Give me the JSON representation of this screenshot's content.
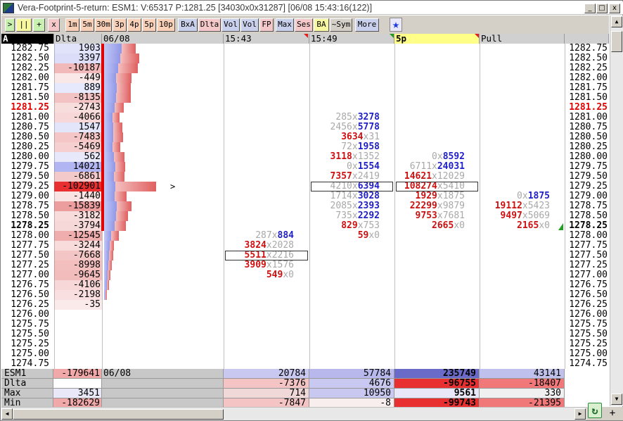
{
  "window": {
    "title": "Vera-Footprint-5-return: ESM1: V:65317 P:1281.25 [34030x0x31287] [06/08 15:43:16(122)]",
    "min_label": "_",
    "max_label": "□",
    "close_label": "x"
  },
  "toolbar": {
    "buttons": [
      ">",
      "||",
      "+",
      "x",
      "1m",
      "5m",
      "30m",
      "3p",
      "4p",
      "5p",
      "10p",
      "BxA",
      "Dlta",
      "Vol",
      "Vol",
      "FP",
      "Max",
      "Ses",
      "BA",
      "~Sym",
      "More"
    ],
    "star": "★"
  },
  "header": {
    "corner": "A",
    "dlta": "Dlta",
    "date": "06/08",
    "cols": [
      "15:43",
      "15:49",
      "5p",
      "Pull"
    ]
  },
  "prices": [
    "1282.75",
    "1282.50",
    "1282.25",
    "1282.00",
    "1281.75",
    "1281.50",
    "1281.25",
    "1281.00",
    "1280.75",
    "1280.50",
    "1280.25",
    "1280.00",
    "1279.75",
    "1279.50",
    "1279.25",
    "1279.00",
    "1278.75",
    "1278.50",
    "1278.25",
    "1278.00",
    "1277.75",
    "1277.50",
    "1277.25",
    "1277.00",
    "1276.75",
    "1276.50",
    "1276.25",
    "1276.00",
    "1275.75",
    "1275.50",
    "1275.25",
    "1275.00",
    "1274.75"
  ],
  "last_price": "1281.25",
  "current_price": "1278.25",
  "deltas": [
    "1903",
    "3397",
    "-10187",
    "-449",
    "889",
    "-8135",
    "-2743",
    "-4066",
    "1547",
    "-7483",
    "-5469",
    "562",
    "14021",
    "-6861",
    "-102901",
    "-1440",
    "-15839",
    "-3182",
    "-3794",
    "-12545",
    "-3244",
    "-7668",
    "-8998",
    "-9645",
    "-4106",
    "-2198",
    "-35",
    "",
    "",
    "",
    "",
    "",
    ""
  ],
  "vol_profile": [
    {
      "b": 0.25,
      "r": 0.2
    },
    {
      "b": 0.23,
      "r": 0.27
    },
    {
      "b": 0.2,
      "r": 0.28
    },
    {
      "b": 0.17,
      "r": 0.22
    },
    {
      "b": 0.18,
      "r": 0.2
    },
    {
      "b": 0.17,
      "r": 0.21
    },
    {
      "b": 0.15,
      "r": 0.13
    },
    {
      "b": 0.12,
      "r": 0.1
    },
    {
      "b": 0.13,
      "r": 0.13
    },
    {
      "b": 0.13,
      "r": 0.14
    },
    {
      "b": 0.12,
      "r": 0.11
    },
    {
      "b": 0.14,
      "r": 0.15
    },
    {
      "b": 0.16,
      "r": 0.14
    },
    {
      "b": 0.14,
      "r": 0.15
    },
    {
      "b": 0.16,
      "r": 0.58
    },
    {
      "b": 0.15,
      "r": 0.17
    },
    {
      "b": 0.18,
      "r": 0.21
    },
    {
      "b": 0.17,
      "r": 0.17
    },
    {
      "b": 0.15,
      "r": 0.16
    },
    {
      "b": 0.1,
      "r": 0.11
    },
    {
      "b": 0.08,
      "r": 0.06
    },
    {
      "b": 0.07,
      "r": 0.06
    },
    {
      "b": 0.06,
      "r": 0.05
    },
    {
      "b": 0.05,
      "r": 0.04
    },
    {
      "b": 0.04,
      "r": 0.03
    },
    {
      "b": 0.02,
      "r": 0.02
    },
    {
      "b": 0.0,
      "r": 0.0
    },
    {
      "b": 0,
      "r": 0
    },
    {
      "b": 0,
      "r": 0
    },
    {
      "b": 0,
      "r": 0
    },
    {
      "b": 0,
      "r": 0
    },
    {
      "b": 0,
      "r": 0
    },
    {
      "b": 0,
      "r": 0
    }
  ],
  "cells": {
    "c1543": [
      {
        "row": 19,
        "bid": "287",
        "ask": "884",
        "hl": "ask"
      },
      {
        "row": 20,
        "bid": "3824",
        "ask": "2028",
        "hl": "bid"
      },
      {
        "row": 21,
        "bid": "5511",
        "ask": "2216",
        "hl": "bid",
        "box": true
      },
      {
        "row": 22,
        "bid": "3909",
        "ask": "1576",
        "hl": "bid"
      },
      {
        "row": 23,
        "bid": "549",
        "ask": "0",
        "hl": "bid"
      }
    ],
    "c1549": [
      {
        "row": 7,
        "bid": "285",
        "ask": "3278",
        "hl": "ask"
      },
      {
        "row": 8,
        "bid": "2456",
        "ask": "5778",
        "hl": "ask"
      },
      {
        "row": 9,
        "bid": "3634",
        "ask": "31",
        "hl": "bid"
      },
      {
        "row": 10,
        "bid": "72",
        "ask": "1958",
        "hl": "ask"
      },
      {
        "row": 11,
        "bid": "3118",
        "ask": "1352",
        "hl": "bid"
      },
      {
        "row": 12,
        "bid": "0",
        "ask": "1554",
        "hl": "ask"
      },
      {
        "row": 13,
        "bid": "7357",
        "ask": "2419",
        "hl": "bid"
      },
      {
        "row": 14,
        "bid": "4210",
        "ask": "6394",
        "hl": "ask",
        "box": true
      },
      {
        "row": 15,
        "bid": "1714",
        "ask": "3028",
        "hl": "ask"
      },
      {
        "row": 16,
        "bid": "2085",
        "ask": "2393",
        "hl": "ask"
      },
      {
        "row": 17,
        "bid": "735",
        "ask": "2292",
        "hl": "ask"
      },
      {
        "row": 18,
        "bid": "829",
        "ask": "753",
        "hl": "bid"
      },
      {
        "row": 19,
        "bid": "59",
        "ask": "0",
        "hl": "bid"
      }
    ],
    "c5p": [
      {
        "row": 11,
        "bid": "0",
        "ask": "8592",
        "hl": "ask"
      },
      {
        "row": 12,
        "bid": "6711",
        "ask": "24031",
        "hl": "ask"
      },
      {
        "row": 13,
        "bid": "14621",
        "ask": "12029",
        "hl": "bid"
      },
      {
        "row": 14,
        "bid": "108274",
        "ask": "5410",
        "hl": "bid",
        "box": true
      },
      {
        "row": 15,
        "bid": "1929",
        "ask": "1875",
        "hl": "bid"
      },
      {
        "row": 16,
        "bid": "22299",
        "ask": "9879",
        "hl": "bid"
      },
      {
        "row": 17,
        "bid": "9753",
        "ask": "7681",
        "hl": "bid"
      },
      {
        "row": 18,
        "bid": "2665",
        "ask": "0",
        "hl": "bid"
      }
    ],
    "cpull": [
      {
        "row": 15,
        "bid": "0",
        "ask": "1875",
        "hl": "ask"
      },
      {
        "row": 16,
        "bid": "19112",
        "ask": "5423",
        "hl": "bid"
      },
      {
        "row": 17,
        "bid": "9497",
        "ask": "5069",
        "hl": "bid"
      },
      {
        "row": 18,
        "bid": "2165",
        "ask": "0",
        "hl": "bid"
      }
    ]
  },
  "summary": {
    "rows": [
      {
        "label": "ESM1",
        "val": "-179641",
        "date": "06/08",
        "cols": [
          "20784",
          "57784",
          "235749",
          "43141"
        ],
        "bg": [
          "#c8c8f0",
          "#b8b8ec",
          "#6a6ac8",
          "#c0c0ec"
        ]
      },
      {
        "label": "Dlta",
        "val": "",
        "date": "",
        "cols": [
          "-7376",
          "4676",
          "-96755",
          "-18407"
        ],
        "bg": [
          "#f4c4c4",
          "#c8c8f0",
          "#e83030",
          "#f07878"
        ]
      },
      {
        "label": "Max",
        "val": "3451",
        "date": "",
        "cols": [
          "714",
          "10950",
          "9561",
          "330"
        ],
        "bg": [
          "#f0d8d8",
          "#c8c8f0",
          "#e8e8f8",
          "#f0f0f0"
        ]
      },
      {
        "label": "Min",
        "val": "-182629",
        "date": "",
        "cols": [
          "-7847",
          "-8",
          "-99743",
          "-21395"
        ],
        "bg": [
          "#f4c4c4",
          "#f8eeee",
          "#e83030",
          "#f07878"
        ]
      }
    ],
    "val_bg": [
      "#f0a8a8",
      "#ffffff",
      "#e8e8f8",
      "#f0a8a8"
    ]
  },
  "colors": {
    "bid": "#cc1010",
    "ask": "#2020c8",
    "dim": "#a8a8a8"
  }
}
